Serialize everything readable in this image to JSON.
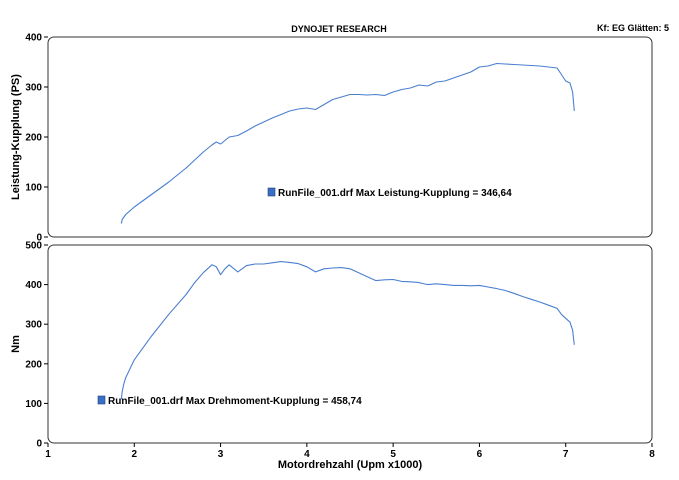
{
  "header": {
    "title": "DYNOJET RESEARCH",
    "settings": "Kf: EG  Glätten: 5"
  },
  "chart_data": [
    {
      "type": "line",
      "ylabel": "Leistung-Kupplung (PS)",
      "ylim": [
        0,
        400
      ],
      "yticks": [
        0,
        100,
        200,
        300,
        400
      ],
      "xlim": [
        1,
        8
      ],
      "grid": false,
      "legend": "RunFile_001.drf Max Leistung-Kupplung = 346,64",
      "series": [
        {
          "name": "RunFile_001.drf",
          "color": "#4a7fd0",
          "x": [
            1.85,
            1.86,
            1.9,
            2.0,
            2.2,
            2.4,
            2.6,
            2.8,
            2.9,
            2.95,
            3.0,
            3.1,
            3.2,
            3.3,
            3.4,
            3.5,
            3.6,
            3.7,
            3.8,
            3.9,
            4.0,
            4.1,
            4.2,
            4.3,
            4.4,
            4.5,
            4.6,
            4.7,
            4.8,
            4.9,
            5.0,
            5.1,
            5.2,
            5.3,
            5.4,
            5.5,
            5.6,
            5.7,
            5.8,
            5.9,
            6.0,
            6.1,
            6.2,
            6.3,
            6.4,
            6.5,
            6.6,
            6.7,
            6.8,
            6.9,
            6.95,
            7.0,
            7.05,
            7.08,
            7.1
          ],
          "y": [
            27,
            35,
            45,
            60,
            85,
            110,
            138,
            170,
            184,
            190,
            186,
            200,
            203,
            212,
            222,
            230,
            238,
            245,
            252,
            256,
            258,
            255,
            265,
            275,
            280,
            285,
            285,
            284,
            285,
            283,
            290,
            295,
            298,
            304,
            302,
            310,
            312,
            318,
            324,
            330,
            340,
            342,
            347,
            346,
            345,
            344,
            343,
            342,
            340,
            338,
            325,
            312,
            308,
            290,
            252
          ]
        }
      ]
    },
    {
      "type": "line",
      "ylabel": "Nm",
      "xlabel": "Motordrehzahl (Upm x1000)",
      "ylim": [
        0,
        500
      ],
      "yticks": [
        0,
        100,
        200,
        300,
        400,
        500
      ],
      "xlim": [
        1,
        8
      ],
      "xticks": [
        1,
        2,
        3,
        4,
        5,
        6,
        7,
        8
      ],
      "grid": false,
      "legend": "RunFile_001.drf Max Drehmoment-Kupplung = 458,74",
      "series": [
        {
          "name": "RunFile_001.drf",
          "color": "#4a7fd0",
          "x": [
            1.85,
            1.86,
            1.88,
            1.9,
            2.0,
            2.2,
            2.4,
            2.6,
            2.7,
            2.8,
            2.9,
            2.95,
            3.0,
            3.05,
            3.1,
            3.2,
            3.25,
            3.3,
            3.4,
            3.5,
            3.6,
            3.7,
            3.8,
            3.9,
            4.0,
            4.1,
            4.2,
            4.3,
            4.4,
            4.5,
            4.6,
            4.7,
            4.8,
            4.9,
            5.0,
            5.1,
            5.2,
            5.3,
            5.4,
            5.5,
            5.6,
            5.7,
            5.8,
            5.9,
            6.0,
            6.1,
            6.2,
            6.3,
            6.4,
            6.5,
            6.6,
            6.7,
            6.8,
            6.9,
            6.95,
            7.0,
            7.05,
            7.08,
            7.1
          ],
          "y": [
            110,
            130,
            150,
            165,
            210,
            270,
            325,
            375,
            405,
            430,
            450,
            445,
            425,
            440,
            450,
            432,
            440,
            448,
            452,
            452,
            455,
            458,
            456,
            453,
            445,
            432,
            440,
            442,
            443,
            440,
            430,
            420,
            410,
            412,
            413,
            408,
            407,
            405,
            400,
            402,
            400,
            398,
            398,
            397,
            398,
            394,
            390,
            385,
            378,
            370,
            363,
            356,
            348,
            340,
            325,
            315,
            305,
            285,
            248
          ]
        }
      ]
    }
  ]
}
